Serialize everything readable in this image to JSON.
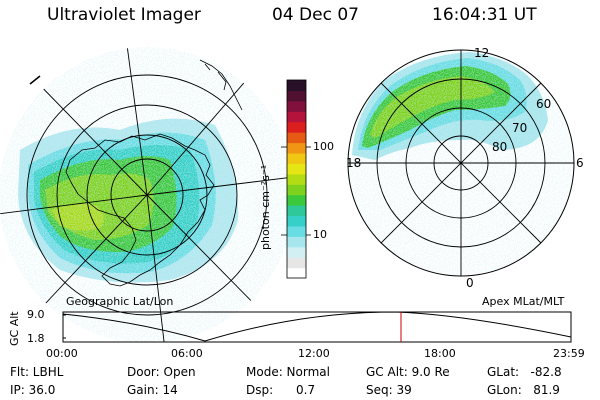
{
  "header": {
    "instrument": "Ultraviolet Imager",
    "date": "04 Dec 07",
    "time": "16:04:31 UT"
  },
  "colorbar": {
    "unit_label": "photon cm⁻²s⁻¹",
    "ticks": [
      "100",
      "10"
    ],
    "colors": [
      "#ffffff",
      "#e6e6e6",
      "#d2f0f4",
      "#a8e6ee",
      "#6adde4",
      "#36d0c8",
      "#2ec89a",
      "#3cc83c",
      "#7ed21e",
      "#b4dc14",
      "#e6e614",
      "#f0c814",
      "#f09614",
      "#e65a14",
      "#dc1e1e",
      "#b4143c",
      "#82103c",
      "#501030",
      "#281028"
    ]
  },
  "left_map": {
    "label": "Geographic Lat/Lon"
  },
  "right_map": {
    "label": "Apex MLat/MLT",
    "mlt_labels": [
      "12",
      "6",
      "0",
      "18"
    ],
    "lat_labels": [
      "60",
      "70",
      "80"
    ]
  },
  "altitude_plot": {
    "ylabel": "GC Alt",
    "yticks": [
      "9.0",
      "1.8"
    ],
    "xticks": [
      "00:00",
      "06:00",
      "12:00",
      "18:00",
      "23:59"
    ],
    "current_time_marker": "16:04"
  },
  "info": {
    "flt": "Flt: LBHL",
    "ip": "IP: 36.0",
    "door": "Door: Open",
    "gain": "Gain: 14",
    "mode": "Mode: Normal",
    "dsp": "Dsp:      0.7",
    "gc_alt": "GC Alt: 9.0 Re",
    "seq": "Seq: 39",
    "glat": "GLat:   -82.8",
    "glon": "GLon:   81.9"
  }
}
